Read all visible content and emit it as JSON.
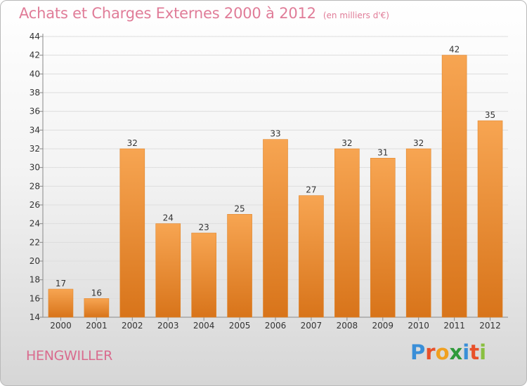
{
  "title": {
    "main": "Achats et Charges Externes 2000 à 2012",
    "unit": "(en milliers d'€)"
  },
  "location": "HENGWILLER",
  "logo": {
    "text": "Proxiti",
    "letters": [
      {
        "char": "P",
        "color": "#3a8fd8"
      },
      {
        "char": "r",
        "color": "#e8502a"
      },
      {
        "char": "o",
        "color": "#f0a020"
      },
      {
        "char": "x",
        "color": "#2f9a3a"
      },
      {
        "char": "i",
        "color": "#3a8fd8"
      },
      {
        "char": "t",
        "color": "#e8502a"
      },
      {
        "char": "i",
        "color": "#8ac040"
      }
    ]
  },
  "colors": {
    "bar_top": "#f7a552",
    "bar_bottom": "#d8741a",
    "bar_edge": "#e0852a",
    "axis": "#888888",
    "grid": "#dddddd",
    "text": "#333333"
  },
  "chart_data": {
    "type": "bar",
    "categories": [
      "2000",
      "2001",
      "2002",
      "2003",
      "2004",
      "2005",
      "2006",
      "2007",
      "2008",
      "2009",
      "2010",
      "2011",
      "2012"
    ],
    "values": [
      17,
      16,
      32,
      24,
      23,
      25,
      33,
      27,
      32,
      31,
      32,
      42,
      35
    ],
    "data_labels": [
      "17",
      "16",
      "32",
      "24",
      "23",
      "25",
      "33",
      "27",
      "32",
      "31",
      "32",
      "42",
      "35"
    ],
    "ylim": [
      14,
      44
    ],
    "yticks": [
      14,
      16,
      18,
      20,
      22,
      24,
      26,
      28,
      30,
      32,
      34,
      36,
      38,
      40,
      42,
      44
    ],
    "ytick_labels": [
      "14",
      "16",
      "18",
      "20",
      "22",
      "24",
      "26",
      "28",
      "30",
      "32",
      "34",
      "36",
      "38",
      "40",
      "42",
      "44"
    ],
    "grid": true,
    "legend": "none"
  }
}
